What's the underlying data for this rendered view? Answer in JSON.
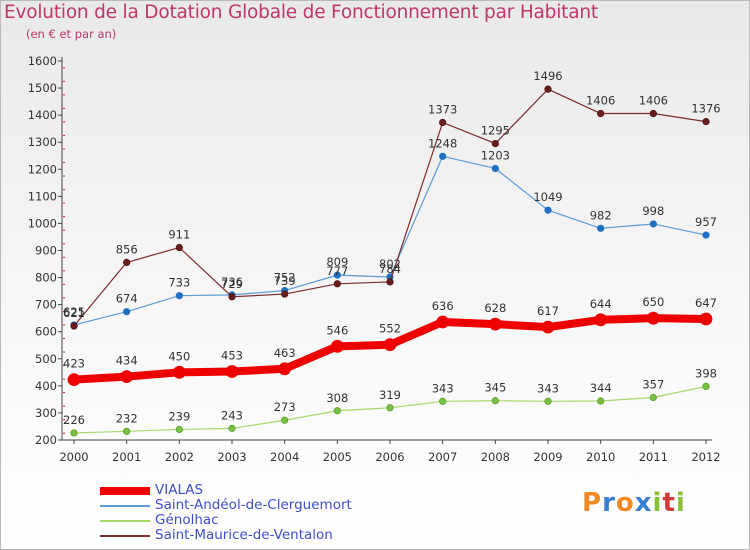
{
  "title": "Evolution de la Dotation Globale de Fonctionnement par Habitant",
  "subtitle": "(en € et par an)",
  "brand": {
    "text": "Proxiti",
    "letters": [
      "P",
      "r",
      "o",
      "x",
      "i",
      "t",
      "i"
    ],
    "colors": [
      "#f08a24",
      "#3a7fd0",
      "#f08a24",
      "#3a7fd0",
      "#86c232",
      "#d23a3a",
      "#86c232"
    ]
  },
  "chart_data": {
    "type": "line",
    "x": [
      "2000",
      "2001",
      "2002",
      "2003",
      "2004",
      "2005",
      "2006",
      "2007",
      "2008",
      "2009",
      "2010",
      "2011",
      "2012"
    ],
    "ylim": [
      200,
      1600
    ],
    "yticks": [
      200,
      300,
      400,
      500,
      600,
      700,
      800,
      900,
      1000,
      1100,
      1200,
      1300,
      1400,
      1500,
      1600
    ],
    "grid": false,
    "legend_position": "bottom-left",
    "series": [
      {
        "name": "VIALAS",
        "color": "#ee0000",
        "values": [
          423,
          434,
          450,
          453,
          463,
          546,
          552,
          636,
          628,
          617,
          644,
          650,
          647
        ]
      },
      {
        "name": "Saint-Andéol-de-Clerguemort",
        "color": "#5b9bd5",
        "values": [
          625,
          674,
          733,
          736,
          752,
          809,
          802,
          1248,
          1203,
          1049,
          982,
          998,
          957
        ]
      },
      {
        "name": "Génolhac",
        "color": "#a6d96a",
        "values": [
          226,
          232,
          239,
          243,
          273,
          308,
          319,
          343,
          345,
          343,
          344,
          357,
          398
        ]
      },
      {
        "name": "Saint-Maurice-de-Ventalon",
        "color": "#7b2c2c",
        "values": [
          621,
          856,
          911,
          729,
          739,
          777,
          784,
          1373,
          1295,
          1496,
          1406,
          1406,
          1376
        ]
      }
    ]
  }
}
